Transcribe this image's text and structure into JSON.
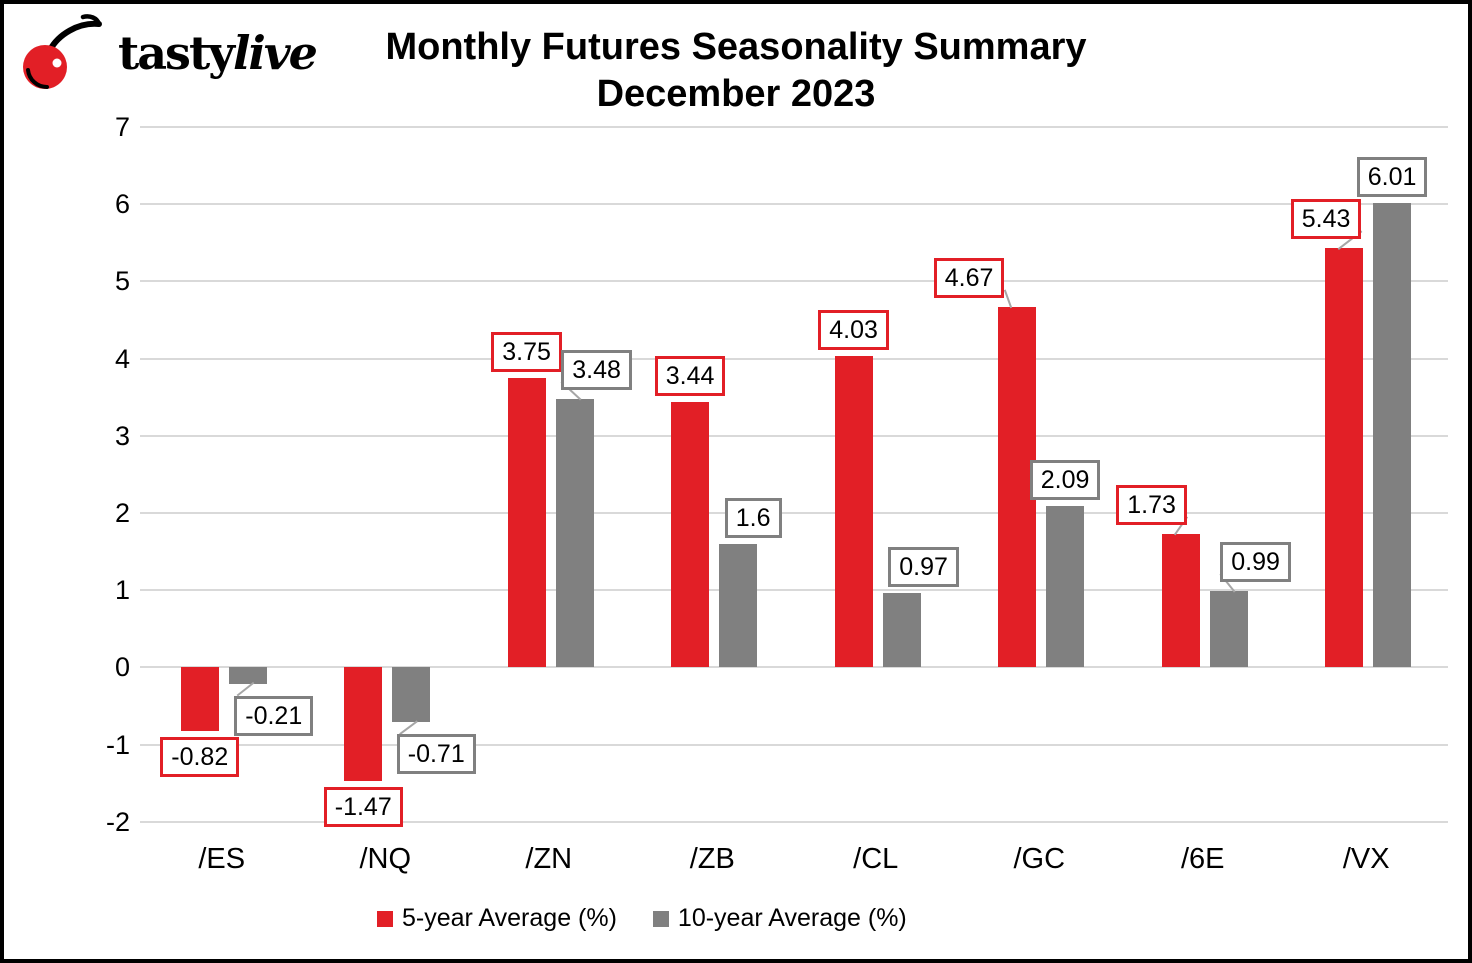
{
  "logo": {
    "text_regular": "tasty",
    "text_italic": "live",
    "cherry_color": "#e21f26"
  },
  "title": {
    "line1": "Monthly Futures Seasonality Summary",
    "line2": "December 2023"
  },
  "colors": {
    "red": "#e21f26",
    "gray": "#808080",
    "gridline": "#d9d9d9",
    "leader": "#a6a6a6",
    "frame": "#000000"
  },
  "chart_data": {
    "type": "bar",
    "title": "Monthly Futures Seasonality Summary",
    "subtitle": "December 2023",
    "categories": [
      "/ES",
      "/NQ",
      "/ZN",
      "/ZB",
      "/CL",
      "/GC",
      "/6E",
      "/VX"
    ],
    "series": [
      {
        "name": "5-year Average (%)",
        "color": "#e21f26",
        "values": [
          -0.82,
          -1.47,
          3.75,
          3.44,
          4.03,
          4.67,
          1.73,
          5.43
        ]
      },
      {
        "name": "10-year Average (%)",
        "color": "#808080",
        "values": [
          -0.21,
          -0.71,
          3.48,
          1.6,
          0.97,
          2.09,
          0.99,
          6.01
        ]
      }
    ],
    "ylim": [
      -2,
      7
    ],
    "yticks": [
      7,
      6,
      5,
      4,
      3,
      2,
      1,
      0,
      -1,
      -2
    ],
    "grid": true,
    "legend_position": "bottom",
    "data_labels": "boxed",
    "label_layout": [
      [
        {
          "dx": 0,
          "leader": false
        },
        {
          "dx": 0,
          "leader": false
        },
        {
          "dx": 0,
          "leader": false
        },
        {
          "dx": 0,
          "leader": false
        },
        {
          "dx": 0,
          "leader": false
        },
        {
          "dx": -48,
          "leader": true
        },
        {
          "dx": -29,
          "leader": true
        },
        {
          "dx": -18,
          "leader": true
        }
      ],
      [
        {
          "dx": 26,
          "leader": true
        },
        {
          "dx": 25,
          "leader": true
        },
        {
          "dx": 22,
          "leader": true
        },
        {
          "dx": 15,
          "leader": false
        },
        {
          "dx": 22,
          "leader": false
        },
        {
          "dx": 0,
          "leader": false
        },
        {
          "dx": 27,
          "leader": true
        },
        {
          "dx": 0,
          "leader": false
        }
      ]
    ]
  }
}
